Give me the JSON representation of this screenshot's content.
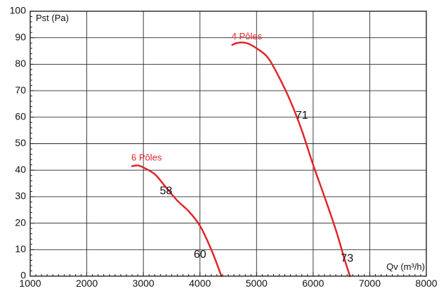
{
  "chart_data": {
    "type": "line",
    "xlim": [
      1000,
      8000
    ],
    "ylim": [
      0,
      100
    ],
    "x_ticks": [
      1000,
      2000,
      3000,
      4000,
      5000,
      6000,
      7000,
      8000
    ],
    "y_ticks": [
      0,
      10,
      20,
      30,
      40,
      50,
      60,
      70,
      80,
      90,
      100
    ],
    "x_tick_labels": [
      "1000",
      "2000",
      "3000",
      "4000",
      "5000",
      "6000",
      "7000",
      "8000"
    ],
    "y_tick_labels": [
      "0",
      "10",
      "20",
      "30",
      "40",
      "50",
      "60",
      "70",
      "80",
      "90",
      "100"
    ],
    "xlabel": "Qv (m³/h)",
    "ylabel": "Pst (Pa)",
    "grid": true,
    "series": [
      {
        "name": "6 Pôles",
        "color": "#e0262b",
        "x": [
          2800,
          2900,
          3000,
          3200,
          3400,
          3600,
          3800,
          4000,
          4200,
          4380
        ],
        "y": [
          41.5,
          41.8,
          41.0,
          38.5,
          33.5,
          28.5,
          24.5,
          19.0,
          10.0,
          0.0
        ],
        "markers": [
          {
            "x": 3400,
            "y": 32.0,
            "label": "58"
          },
          {
            "x": 4000,
            "y": 8.0,
            "label": "60"
          }
        ]
      },
      {
        "name": "4 Pôles",
        "color": "#e0262b",
        "x": [
          4570,
          4650,
          4750,
          4850,
          5000,
          5200,
          5400,
          5600,
          5800,
          6000,
          6200,
          6400,
          6560,
          6650
        ],
        "y": [
          87.3,
          88.0,
          88.2,
          87.8,
          86.0,
          82.5,
          75.0,
          66.0,
          55.0,
          42.0,
          30.0,
          17.5,
          6.0,
          0.0
        ],
        "markers": [
          {
            "x": 5800,
            "y": 60.5,
            "label": "71"
          },
          {
            "x": 6600,
            "y": 6.5,
            "label": "73"
          }
        ]
      }
    ]
  }
}
